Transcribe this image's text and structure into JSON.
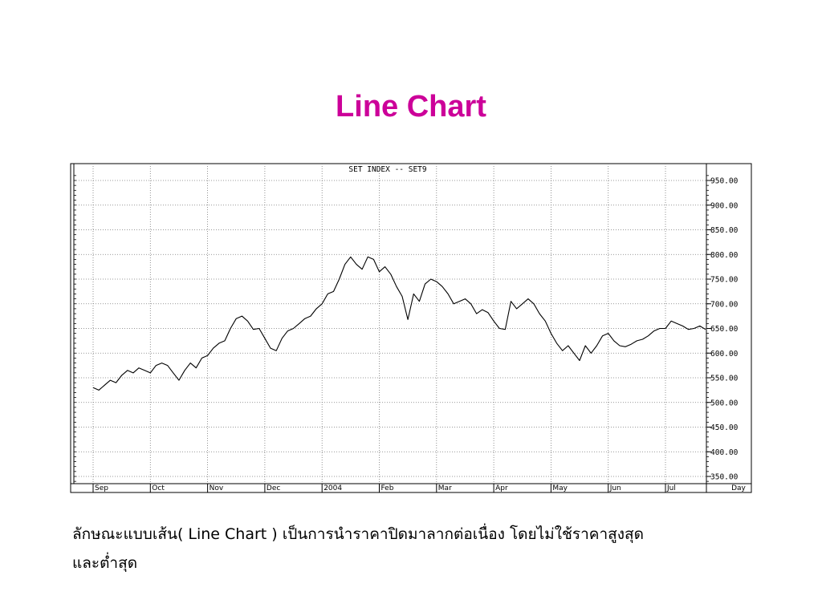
{
  "slide": {
    "title": "Line Chart",
    "caption_line1": "ลักษณะแบบเส้น( Line Chart ) เป็นการนำราคาปิดมาลากต่อเนื่อง โดยไม่ใช้ราคาสูงสุด",
    "caption_line2": "และต่ำสุด"
  },
  "chart_data": {
    "type": "line",
    "title": "SET INDEX -- SET9",
    "xlabel": "Day",
    "ylabel": "",
    "grid": true,
    "ylim": [
      350,
      950
    ],
    "yticks": [
      350,
      400,
      450,
      500,
      550,
      600,
      650,
      700,
      750,
      800,
      850,
      900,
      950
    ],
    "ytick_labels": [
      "350.00",
      "400.00",
      "450.00",
      "500.00",
      "550.00",
      "600.00",
      "650.00",
      "700.00",
      "750.00",
      "800.00",
      "850.00",
      "900.00",
      "950.00"
    ],
    "x_ticks": [
      {
        "label": "Sep",
        "month": 0
      },
      {
        "label": "Oct",
        "month": 1
      },
      {
        "label": "Nov",
        "month": 2
      },
      {
        "label": "Dec",
        "month": 3
      },
      {
        "label": "2004",
        "month": 4
      },
      {
        "label": "Feb",
        "month": 5
      },
      {
        "label": "Mar",
        "month": 6
      },
      {
        "label": "Apr",
        "month": 7
      },
      {
        "label": "May",
        "month": 8
      },
      {
        "label": "Jun",
        "month": 9
      },
      {
        "label": "Jul",
        "month": 10
      }
    ],
    "colors": {
      "line": "#000000",
      "grid": "#888888",
      "title": "#cc0099"
    },
    "series": [
      {
        "values": [
          [
            0.0,
            530
          ],
          [
            0.1,
            525
          ],
          [
            0.2,
            535
          ],
          [
            0.3,
            545
          ],
          [
            0.4,
            540
          ],
          [
            0.5,
            555
          ],
          [
            0.6,
            565
          ],
          [
            0.7,
            560
          ],
          [
            0.8,
            570
          ],
          [
            0.9,
            565
          ],
          [
            1.0,
            560
          ],
          [
            1.1,
            575
          ],
          [
            1.2,
            580
          ],
          [
            1.3,
            575
          ],
          [
            1.4,
            560
          ],
          [
            1.5,
            545
          ],
          [
            1.6,
            565
          ],
          [
            1.7,
            580
          ],
          [
            1.8,
            570
          ],
          [
            1.9,
            590
          ],
          [
            2.0,
            595
          ],
          [
            2.1,
            610
          ],
          [
            2.2,
            620
          ],
          [
            2.3,
            625
          ],
          [
            2.4,
            650
          ],
          [
            2.5,
            670
          ],
          [
            2.6,
            675
          ],
          [
            2.7,
            665
          ],
          [
            2.8,
            648
          ],
          [
            2.9,
            650
          ],
          [
            3.0,
            630
          ],
          [
            3.1,
            610
          ],
          [
            3.2,
            605
          ],
          [
            3.3,
            630
          ],
          [
            3.4,
            645
          ],
          [
            3.5,
            650
          ],
          [
            3.6,
            660
          ],
          [
            3.7,
            670
          ],
          [
            3.8,
            675
          ],
          [
            3.9,
            690
          ],
          [
            4.0,
            700
          ],
          [
            4.1,
            720
          ],
          [
            4.2,
            725
          ],
          [
            4.3,
            750
          ],
          [
            4.4,
            780
          ],
          [
            4.5,
            795
          ],
          [
            4.6,
            780
          ],
          [
            4.7,
            770
          ],
          [
            4.8,
            795
          ],
          [
            4.9,
            790
          ],
          [
            5.0,
            765
          ],
          [
            5.1,
            775
          ],
          [
            5.2,
            760
          ],
          [
            5.3,
            735
          ],
          [
            5.4,
            715
          ],
          [
            5.5,
            668
          ],
          [
            5.6,
            720
          ],
          [
            5.7,
            705
          ],
          [
            5.8,
            740
          ],
          [
            5.9,
            750
          ],
          [
            6.0,
            745
          ],
          [
            6.1,
            735
          ],
          [
            6.2,
            720
          ],
          [
            6.3,
            700
          ],
          [
            6.4,
            705
          ],
          [
            6.5,
            710
          ],
          [
            6.6,
            700
          ],
          [
            6.7,
            680
          ],
          [
            6.8,
            688
          ],
          [
            6.9,
            682
          ],
          [
            7.0,
            665
          ],
          [
            7.1,
            650
          ],
          [
            7.2,
            648
          ],
          [
            7.3,
            705
          ],
          [
            7.4,
            690
          ],
          [
            7.5,
            700
          ],
          [
            7.6,
            710
          ],
          [
            7.7,
            700
          ],
          [
            7.8,
            680
          ],
          [
            7.9,
            665
          ],
          [
            8.0,
            640
          ],
          [
            8.1,
            620
          ],
          [
            8.2,
            605
          ],
          [
            8.3,
            615
          ],
          [
            8.4,
            600
          ],
          [
            8.5,
            585
          ],
          [
            8.6,
            615
          ],
          [
            8.7,
            600
          ],
          [
            8.8,
            615
          ],
          [
            8.9,
            635
          ],
          [
            9.0,
            640
          ],
          [
            9.1,
            625
          ],
          [
            9.2,
            615
          ],
          [
            9.3,
            613
          ],
          [
            9.4,
            618
          ],
          [
            9.5,
            625
          ],
          [
            9.6,
            628
          ],
          [
            9.7,
            635
          ],
          [
            9.8,
            645
          ],
          [
            9.9,
            650
          ],
          [
            10.0,
            650
          ],
          [
            10.1,
            665
          ],
          [
            10.2,
            660
          ],
          [
            10.3,
            655
          ],
          [
            10.4,
            648
          ],
          [
            10.5,
            650
          ],
          [
            10.6,
            655
          ],
          [
            10.7,
            648
          ]
        ]
      }
    ]
  }
}
